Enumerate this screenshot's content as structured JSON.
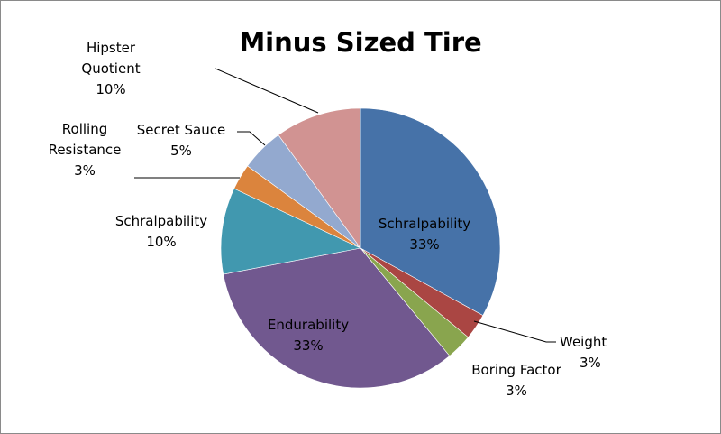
{
  "chart_data": {
    "type": "pie",
    "title": "Minus Sized Tire",
    "slices": [
      {
        "label": "Schralpability",
        "value": 33,
        "pct": "33%",
        "color": "#4672a8"
      },
      {
        "label": "Weight",
        "value": 3,
        "pct": "3%",
        "color": "#aa4643"
      },
      {
        "label": "Boring Factor",
        "value": 3,
        "pct": "3%",
        "color": "#89a54e"
      },
      {
        "label": "Endurability",
        "value": 33,
        "pct": "33%",
        "color": "#71588f"
      },
      {
        "label": "Schralpability",
        "value": 10,
        "pct": "10%",
        "color": "#4198af"
      },
      {
        "label": "Rolling Resistance",
        "value": 3,
        "pct": "3%",
        "color": "#db843d"
      },
      {
        "label": "Secret Sauce",
        "value": 5,
        "pct": "5%",
        "color": "#93a9cf"
      },
      {
        "label": "Hipster Quotient",
        "value": 10,
        "pct": "10%",
        "color": "#d19392"
      }
    ],
    "legend": "none"
  }
}
